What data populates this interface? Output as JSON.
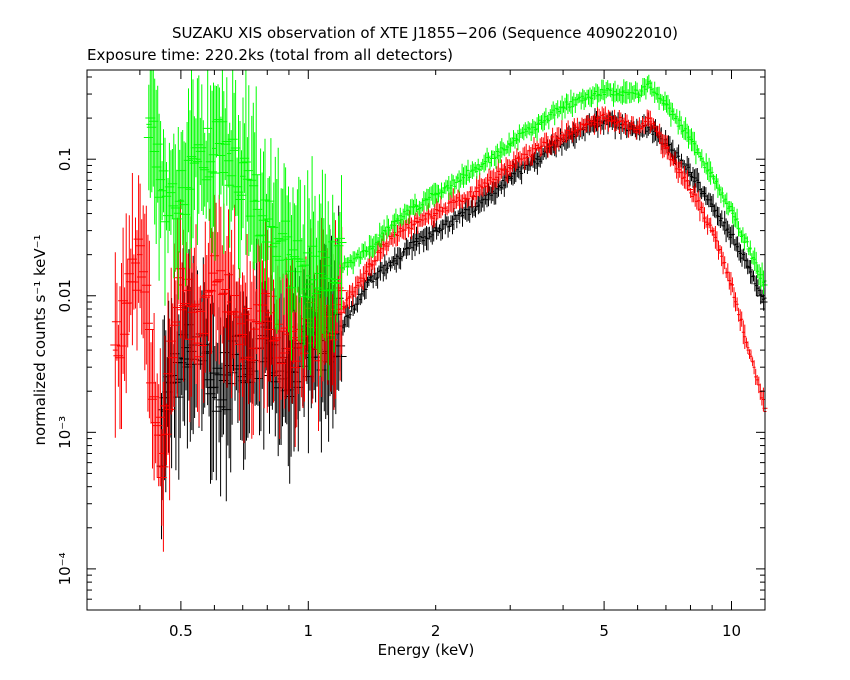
{
  "chart_data": {
    "type": "scatter",
    "title": "SUZAKU XIS observation of XTE J1855−206 (Sequence 409022010)",
    "subtitle": "Exposure time: 220.2ks (total from all detectors)",
    "xlabel": "Energy (keV)",
    "ylabel": "normalized counts s⁻¹ keV⁻¹",
    "x_scale": "log",
    "y_scale": "log",
    "xlim": [
      0.3,
      12
    ],
    "ylim": [
      5e-05,
      0.45
    ],
    "x_ticks": [
      "0.5",
      "1",
      "2",
      "5",
      "10"
    ],
    "y_ticks": [
      "0.1",
      "0.01",
      "10⁻³",
      "10⁻⁴"
    ],
    "x_tick_values": [
      0.5,
      1,
      2,
      5,
      10
    ],
    "y_tick_values": [
      0.1,
      0.01,
      0.001,
      0.0001
    ],
    "grid": false,
    "series": [
      {
        "color": "#000000",
        "points": [
          [
            0.45,
            0.00095
          ],
          [
            0.5,
            0.0035
          ],
          [
            0.55,
            0.005
          ],
          [
            0.6,
            0.0018
          ],
          [
            0.7,
            0.0035
          ],
          [
            0.8,
            0.0045
          ],
          [
            0.9,
            0.0025
          ],
          [
            1.0,
            0.004
          ],
          [
            1.2,
            0.006
          ],
          [
            1.4,
            0.013
          ],
          [
            1.6,
            0.018
          ],
          [
            1.8,
            0.025
          ],
          [
            2.0,
            0.03
          ],
          [
            2.5,
            0.045
          ],
          [
            3.0,
            0.075
          ],
          [
            3.5,
            0.1
          ],
          [
            4.0,
            0.14
          ],
          [
            4.5,
            0.17
          ],
          [
            5.0,
            0.19
          ],
          [
            5.5,
            0.18
          ],
          [
            6.0,
            0.16
          ],
          [
            6.4,
            0.17
          ],
          [
            7.0,
            0.13
          ],
          [
            8.0,
            0.08
          ],
          [
            9.0,
            0.045
          ],
          [
            10.0,
            0.028
          ],
          [
            11.0,
            0.016
          ],
          [
            12.0,
            0.009
          ]
        ]
      },
      {
        "color": "#ff0000",
        "points": [
          [
            0.35,
            0.004
          ],
          [
            0.4,
            0.02
          ],
          [
            0.45,
            0.0007
          ],
          [
            0.5,
            0.012
          ],
          [
            0.55,
            0.005
          ],
          [
            0.6,
            0.012
          ],
          [
            0.65,
            0.009
          ],
          [
            0.7,
            0.005
          ],
          [
            0.8,
            0.007
          ],
          [
            0.9,
            0.004
          ],
          [
            1.0,
            0.006
          ],
          [
            1.1,
            0.005
          ],
          [
            1.2,
            0.008
          ],
          [
            1.4,
            0.017
          ],
          [
            1.6,
            0.028
          ],
          [
            1.8,
            0.035
          ],
          [
            2.0,
            0.04
          ],
          [
            2.5,
            0.058
          ],
          [
            3.0,
            0.09
          ],
          [
            3.5,
            0.12
          ],
          [
            4.0,
            0.15
          ],
          [
            4.5,
            0.18
          ],
          [
            5.0,
            0.2
          ],
          [
            5.5,
            0.19
          ],
          [
            6.0,
            0.165
          ],
          [
            6.4,
            0.2
          ],
          [
            7.0,
            0.12
          ],
          [
            8.0,
            0.06
          ],
          [
            9.0,
            0.03
          ],
          [
            10.0,
            0.012
          ],
          [
            11.0,
            0.004
          ],
          [
            12.0,
            0.0015
          ]
        ]
      },
      {
        "color": "#00ff00",
        "points": [
          [
            0.42,
            0.18
          ],
          [
            0.45,
            0.06
          ],
          [
            0.5,
            0.05
          ],
          [
            0.55,
            0.1
          ],
          [
            0.6,
            0.12
          ],
          [
            0.65,
            0.11
          ],
          [
            0.7,
            0.075
          ],
          [
            0.75,
            0.05
          ],
          [
            0.8,
            0.035
          ],
          [
            0.85,
            0.025
          ],
          [
            0.9,
            0.02
          ],
          [
            0.95,
            0.015
          ],
          [
            1.0,
            0.014
          ],
          [
            1.1,
            0.014
          ],
          [
            1.2,
            0.016
          ],
          [
            1.4,
            0.022
          ],
          [
            1.6,
            0.035
          ],
          [
            1.8,
            0.045
          ],
          [
            2.0,
            0.055
          ],
          [
            2.5,
            0.085
          ],
          [
            3.0,
            0.13
          ],
          [
            3.5,
            0.18
          ],
          [
            4.0,
            0.24
          ],
          [
            4.5,
            0.28
          ],
          [
            5.0,
            0.31
          ],
          [
            5.5,
            0.31
          ],
          [
            6.0,
            0.3
          ],
          [
            6.4,
            0.36
          ],
          [
            7.0,
            0.25
          ],
          [
            8.0,
            0.14
          ],
          [
            9.0,
            0.075
          ],
          [
            10.0,
            0.042
          ],
          [
            11.0,
            0.022
          ],
          [
            12.0,
            0.012
          ]
        ]
      }
    ]
  }
}
